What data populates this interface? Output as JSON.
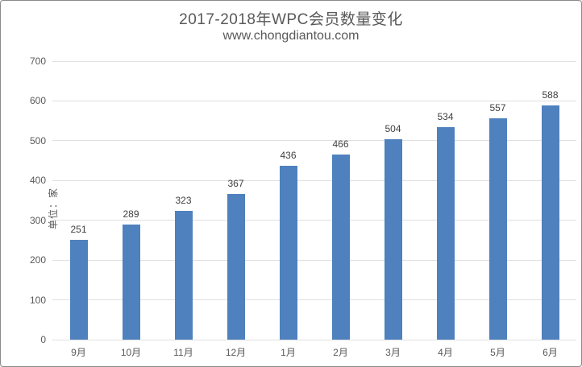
{
  "chart_data": {
    "type": "bar",
    "title": "2017-2018年WPC会员数量变化",
    "subtitle": "www.chongdiantou.com",
    "ylabel": "单位：家",
    "xlabel": "",
    "categories": [
      "9月",
      "10月",
      "11月",
      "12月",
      "1月",
      "2月",
      "3月",
      "4月",
      "5月",
      "6月"
    ],
    "values": [
      251,
      289,
      323,
      367,
      436,
      466,
      504,
      534,
      557,
      588
    ],
    "ylim": [
      0,
      700
    ],
    "yticks": [
      0,
      100,
      200,
      300,
      400,
      500,
      600,
      700
    ],
    "grid": true,
    "legend": false,
    "bar_color": "#4E81BD",
    "gridline_color": "#e0e0e0",
    "text_color": "#595959",
    "data_label_color": "#404040"
  }
}
